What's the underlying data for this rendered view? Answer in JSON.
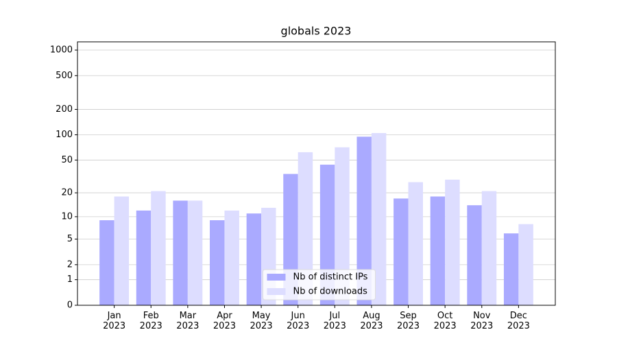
{
  "chart_data": {
    "type": "bar",
    "title": "globals 2023",
    "categories": [
      "Jan 2023",
      "Feb 2023",
      "Mar 2023",
      "Apr 2023",
      "May 2023",
      "Jun 2023",
      "Jul 2023",
      "Aug 2023",
      "Sep 2023",
      "Oct 2023",
      "Nov 2023",
      "Dec 2023"
    ],
    "series": [
      {
        "name": "Nb of distinct IPs",
        "color": "#aaaaff",
        "values": [
          9,
          12,
          16,
          9,
          11,
          34,
          44,
          95,
          17,
          18,
          14,
          6
        ]
      },
      {
        "name": "Nb of downloads",
        "color": "#ddddff",
        "values": [
          18,
          21,
          16,
          12,
          13,
          62,
          71,
          105,
          27,
          29,
          21,
          8
        ]
      }
    ],
    "yscale": "log1p",
    "ylim": [
      0,
      1250
    ],
    "yticks": [
      0,
      1,
      2,
      5,
      10,
      20,
      50,
      100,
      200,
      500,
      1000
    ],
    "grid": true,
    "legend": "lower center"
  }
}
